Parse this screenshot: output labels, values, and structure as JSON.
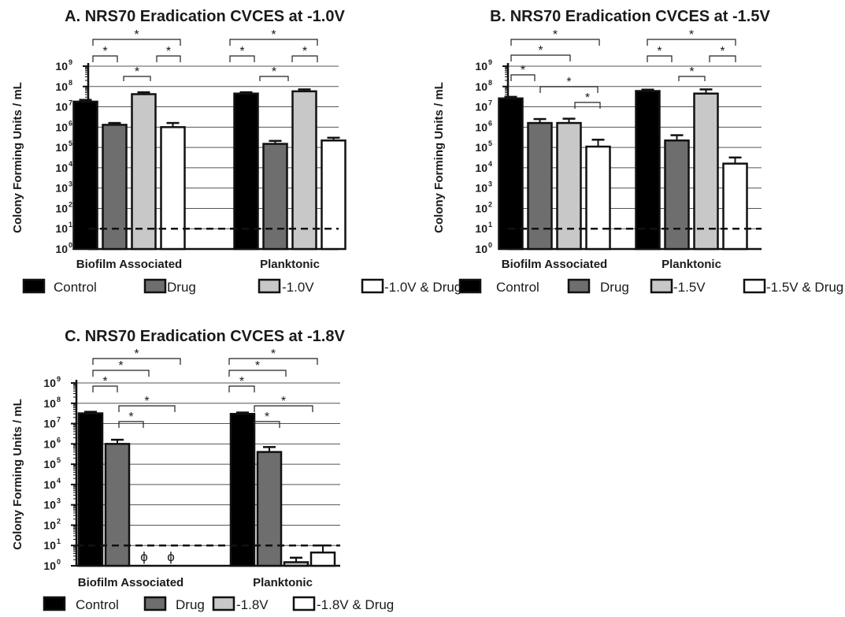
{
  "figure": {
    "panels": [
      {
        "id": "A",
        "legend": [
          "Control",
          "Drug",
          "-1.0V",
          "-1.0V & Drug"
        ]
      },
      {
        "id": "B",
        "legend": [
          "Control",
          "Drug",
          "-1.5V",
          "-1.5V & Drug"
        ]
      },
      {
        "id": "C",
        "legend": [
          "Control",
          "Drug",
          "-1.8V",
          "-1.8V & Drug"
        ]
      }
    ]
  },
  "chart_data": [
    {
      "type": "bar",
      "title": "A. NRS70 Eradication CVCES at -1.0V",
      "ylabel": "Colony Forming Units / mL",
      "yscale": "log",
      "ylim": [
        1,
        1000000000
      ],
      "categories": [
        "Biofilm Associated",
        "Planktonic"
      ],
      "series": [
        {
          "name": "Control",
          "values": [
            18000000,
            45000000
          ],
          "errors": [
            22000000,
            52000000
          ],
          "color": "#000000"
        },
        {
          "name": "Drug",
          "values": [
            1300000,
            150000
          ],
          "errors": [
            1600000,
            210000
          ],
          "color": "#6e6e6e"
        },
        {
          "name": "-1.0V",
          "values": [
            42000000,
            58000000
          ],
          "errors": [
            52000000,
            72000000
          ],
          "color": "#c8c8c8"
        },
        {
          "name": "-1.0V & Drug",
          "values": [
            1000000,
            220000
          ],
          "errors": [
            1600000,
            300000
          ],
          "color": "#ffffff"
        }
      ],
      "reference_line": 10,
      "annotations": [
        "*",
        "*",
        "*",
        "*",
        "*",
        "*",
        "*",
        "*"
      ],
      "legend": "bottom"
    },
    {
      "type": "bar",
      "title": "B. NRS70 Eradication CVCES at -1.5V",
      "ylabel": "Colony Forming Units / mL",
      "yscale": "log",
      "ylim": [
        1,
        1000000000
      ],
      "categories": [
        "Biofilm Associated",
        "Planktonic"
      ],
      "series": [
        {
          "name": "Control",
          "values": [
            26000000,
            60000000
          ],
          "errors": [
            31000000,
            70000000
          ],
          "color": "#000000"
        },
        {
          "name": "Drug",
          "values": [
            1600000,
            220000
          ],
          "errors": [
            2500000,
            400000
          ],
          "color": "#6e6e6e"
        },
        {
          "name": "-1.5V",
          "values": [
            1600000,
            45000000
          ],
          "errors": [
            2600000,
            72000000
          ],
          "color": "#c8c8c8"
        },
        {
          "name": "-1.5V & Drug",
          "values": [
            110000,
            16000
          ],
          "errors": [
            240000,
            32000
          ],
          "color": "#ffffff"
        }
      ],
      "reference_line": 10,
      "annotations": [
        "*",
        "*",
        "*",
        "*",
        "*",
        "*",
        "*",
        "*",
        "*"
      ],
      "legend": "bottom"
    },
    {
      "type": "bar",
      "title": "C. NRS70 Eradication CVCES at -1.8V",
      "ylabel": "Colony Forming Units / mL",
      "yscale": "log",
      "ylim": [
        1,
        1000000000
      ],
      "categories": [
        "Biofilm Associated",
        "Planktonic"
      ],
      "series": [
        {
          "name": "Control",
          "values": [
            32000000,
            30000000
          ],
          "errors": [
            38000000,
            35000000
          ],
          "color": "#000000"
        },
        {
          "name": "Drug",
          "values": [
            1000000,
            400000
          ],
          "errors": [
            1600000,
            700000
          ],
          "color": "#6e6e6e"
        },
        {
          "name": "-1.8V",
          "values": [
            null,
            1.5
          ],
          "errors": [
            null,
            2.5
          ],
          "color": "#c8c8c8"
        },
        {
          "name": "-1.8V & Drug",
          "values": [
            null,
            4.5
          ],
          "errors": [
            null,
            10
          ],
          "color": "#ffffff"
        }
      ],
      "reference_line": 10,
      "markers": [
        "ϕ",
        "ϕ"
      ],
      "annotations": [
        "*",
        "*",
        "*",
        "*",
        "*",
        "*",
        "*",
        "*",
        "*",
        "*"
      ],
      "legend": "bottom"
    }
  ]
}
